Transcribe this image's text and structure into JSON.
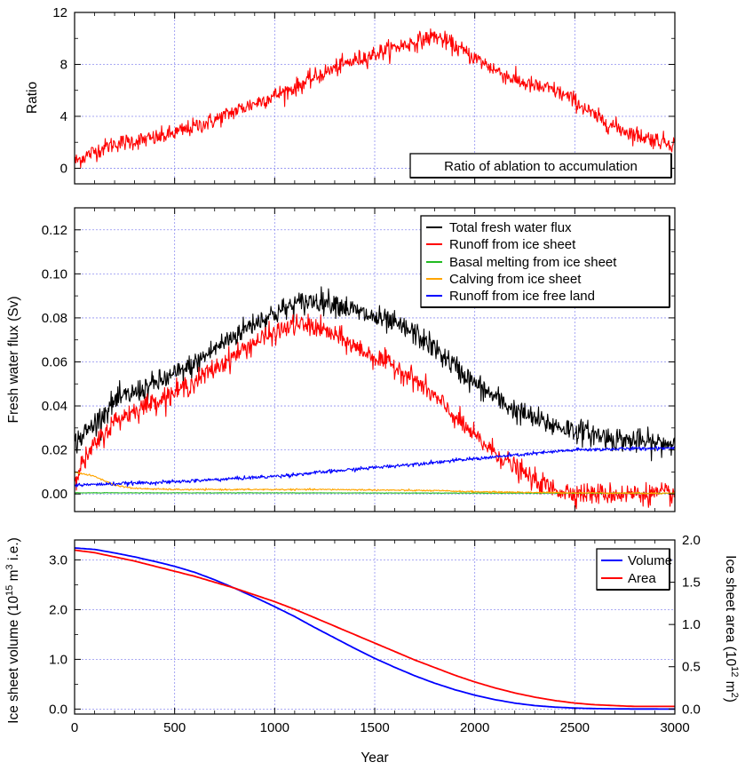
{
  "chart_data": [
    {
      "id": "ratio",
      "type": "line",
      "title": "",
      "xlabel": "",
      "ylabel": "Ratio",
      "xlim": [
        0,
        3000
      ],
      "ylim": [
        -1.2,
        12
      ],
      "xticks": [
        0,
        500,
        1000,
        1500,
        2000,
        2500,
        3000
      ],
      "yticks": [
        0,
        4,
        8,
        12
      ],
      "ytick_labels": [
        "0",
        "4",
        "8",
        "12"
      ],
      "grid": true,
      "legend_position": "bottom-right",
      "series": [
        {
          "name": "Ratio of ablation to accumulation",
          "color": "#ff0000",
          "noise": 0.55,
          "x": [
            0,
            100,
            200,
            300,
            400,
            500,
            600,
            700,
            800,
            900,
            1000,
            1100,
            1200,
            1300,
            1400,
            1500,
            1600,
            1700,
            1800,
            1900,
            2000,
            2100,
            2200,
            2300,
            2400,
            2500,
            2600,
            2700,
            2800,
            2900,
            3000
          ],
          "y": [
            0.5,
            1.3,
            1.9,
            2.1,
            2.3,
            2.7,
            3.2,
            3.7,
            4.4,
            5.0,
            5.6,
            6.2,
            7.0,
            7.7,
            8.3,
            8.8,
            9.3,
            9.7,
            10.2,
            9.4,
            8.5,
            7.6,
            6.8,
            6.3,
            6.0,
            5.2,
            4.0,
            3.2,
            2.6,
            2.2,
            1.9
          ]
        }
      ],
      "legend": [
        "Ratio of ablation to accumulation"
      ]
    },
    {
      "id": "flux",
      "type": "line",
      "title": "",
      "xlabel": "",
      "ylabel": "Fresh water flux (Sv)",
      "xlim": [
        0,
        3000
      ],
      "ylim": [
        -0.008,
        0.13
      ],
      "xticks": [
        0,
        500,
        1000,
        1500,
        2000,
        2500,
        3000
      ],
      "yticks": [
        0.0,
        0.02,
        0.04,
        0.06,
        0.08,
        0.1,
        0.12
      ],
      "ytick_labels": [
        "0.00",
        "0.02",
        "0.04",
        "0.06",
        "0.08",
        "0.10",
        "0.12"
      ],
      "grid": true,
      "legend_position": "top-right",
      "series": [
        {
          "name": "Total fresh water flux",
          "color": "#000000",
          "noise": 0.0045,
          "x": [
            0,
            100,
            200,
            300,
            400,
            500,
            600,
            700,
            800,
            900,
            1000,
            1100,
            1200,
            1300,
            1400,
            1500,
            1600,
            1700,
            1800,
            1900,
            2000,
            2100,
            2200,
            2300,
            2400,
            2500,
            2600,
            2700,
            2800,
            2900,
            3000
          ],
          "y": [
            0.023,
            0.032,
            0.042,
            0.046,
            0.05,
            0.054,
            0.059,
            0.066,
            0.072,
            0.078,
            0.082,
            0.086,
            0.088,
            0.087,
            0.083,
            0.08,
            0.077,
            0.073,
            0.066,
            0.058,
            0.05,
            0.044,
            0.038,
            0.034,
            0.031,
            0.029,
            0.027,
            0.025,
            0.024,
            0.023,
            0.023
          ]
        },
        {
          "name": "Runoff from ice sheet",
          "color": "#ff0000",
          "noise": 0.004,
          "x": [
            0,
            100,
            200,
            300,
            400,
            500,
            600,
            700,
            800,
            900,
            1000,
            1100,
            1200,
            1300,
            1400,
            1500,
            1600,
            1700,
            1800,
            1900,
            2000,
            2100,
            2200,
            2300,
            2400,
            2500,
            2600,
            2700,
            2800,
            2900,
            3000
          ],
          "y": [
            0.008,
            0.022,
            0.033,
            0.038,
            0.042,
            0.046,
            0.051,
            0.057,
            0.063,
            0.069,
            0.073,
            0.077,
            0.076,
            0.072,
            0.067,
            0.062,
            0.058,
            0.052,
            0.044,
            0.035,
            0.026,
            0.019,
            0.012,
            0.006,
            0.002,
            0.0005,
            0.0,
            0.0,
            0.0,
            0.0,
            0.0
          ]
        },
        {
          "name": "Basal melting from ice sheet",
          "color": "#22bb22",
          "noise": 0.0001,
          "x": [
            0,
            1000,
            2000,
            3000
          ],
          "y": [
            0.0005,
            0.0005,
            0.0004,
            0.0003
          ]
        },
        {
          "name": "Calving from ice sheet",
          "color": "#ffa500",
          "noise": 0.0003,
          "x": [
            0,
            100,
            200,
            300,
            500,
            800,
            1000,
            1300,
            1500,
            1800,
            2000,
            2500,
            3000
          ],
          "y": [
            0.01,
            0.008,
            0.004,
            0.0025,
            0.002,
            0.002,
            0.002,
            0.002,
            0.0018,
            0.0015,
            0.001,
            0.0005,
            0.0003
          ]
        },
        {
          "name": "Runoff from ice free land",
          "color": "#0000ff",
          "noise": 0.0007,
          "x": [
            0,
            500,
            1000,
            1500,
            2000,
            2500,
            3000
          ],
          "y": [
            0.004,
            0.0055,
            0.008,
            0.012,
            0.016,
            0.02,
            0.021
          ]
        }
      ],
      "legend": [
        "Total fresh water flux",
        "Runoff from ice sheet",
        "Basal melting from ice sheet",
        "Calving from ice sheet",
        "Runoff from ice free land"
      ]
    },
    {
      "id": "volume",
      "type": "line",
      "title": "",
      "xlabel": "Year",
      "ylabel": "Ice sheet volume (10^15 m^3 i.e.)",
      "y2label": "Ice sheet area (10^12 m^2)",
      "xlim": [
        0,
        3000
      ],
      "ylim": [
        -0.1,
        3.4
      ],
      "y2lim": [
        -0.06,
        2.0
      ],
      "xticks": [
        0,
        500,
        1000,
        1500,
        2000,
        2500,
        3000
      ],
      "xtick_labels": [
        "0",
        "500",
        "1000",
        "1500",
        "2000",
        "2500",
        "3000"
      ],
      "yticks": [
        0,
        1,
        2,
        3
      ],
      "ytick_labels": [
        "0.0",
        "1.0",
        "2.0",
        "3.0"
      ],
      "y2ticks": [
        0,
        0.5,
        1,
        1.5,
        2
      ],
      "y2tick_labels": [
        "0.0",
        "0.5",
        "1.0",
        "1.5",
        "2.0"
      ],
      "grid": true,
      "legend_position": "top-right",
      "series": [
        {
          "name": "Volume",
          "color": "#0000ff",
          "axis": "left",
          "x": [
            0,
            100,
            200,
            300,
            400,
            500,
            600,
            700,
            800,
            900,
            1000,
            1100,
            1200,
            1300,
            1400,
            1500,
            1600,
            1700,
            1800,
            1900,
            2000,
            2100,
            2200,
            2300,
            2400,
            2500,
            2600,
            2700,
            2800,
            2900,
            3000
          ],
          "y": [
            3.24,
            3.21,
            3.14,
            3.06,
            2.97,
            2.87,
            2.75,
            2.6,
            2.43,
            2.25,
            2.06,
            1.86,
            1.64,
            1.43,
            1.22,
            1.02,
            0.84,
            0.67,
            0.52,
            0.39,
            0.28,
            0.19,
            0.12,
            0.07,
            0.04,
            0.02,
            0.01,
            0.005,
            0.002,
            0.001,
            0.0
          ]
        },
        {
          "name": "Area",
          "color": "#ff0000",
          "axis": "right",
          "x": [
            0,
            100,
            200,
            300,
            400,
            500,
            600,
            700,
            800,
            900,
            1000,
            1100,
            1200,
            1300,
            1400,
            1500,
            1600,
            1700,
            1800,
            1900,
            2000,
            2100,
            2200,
            2300,
            2400,
            2500,
            2600,
            2700,
            2800,
            2900,
            3000
          ],
          "y": [
            1.88,
            1.85,
            1.8,
            1.75,
            1.69,
            1.63,
            1.57,
            1.5,
            1.43,
            1.35,
            1.27,
            1.18,
            1.08,
            0.98,
            0.88,
            0.78,
            0.68,
            0.58,
            0.49,
            0.4,
            0.32,
            0.25,
            0.19,
            0.14,
            0.1,
            0.07,
            0.05,
            0.04,
            0.03,
            0.03,
            0.03
          ]
        }
      ],
      "legend": [
        "Volume",
        "Area"
      ]
    }
  ]
}
